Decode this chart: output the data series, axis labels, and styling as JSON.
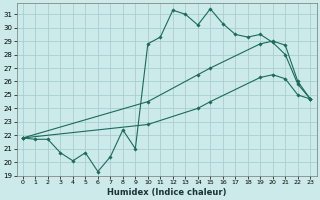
{
  "xlabel": "Humidex (Indice chaleur)",
  "background_color": "#cceaea",
  "grid_color": "#aacece",
  "line_color": "#1a6b5a",
  "xlim": [
    -0.5,
    23.5
  ],
  "ylim": [
    19,
    31.8
  ],
  "yticks": [
    19,
    20,
    21,
    22,
    23,
    24,
    25,
    26,
    27,
    28,
    29,
    30,
    31
  ],
  "xticks": [
    0,
    1,
    2,
    3,
    4,
    5,
    6,
    7,
    8,
    9,
    10,
    11,
    12,
    13,
    14,
    15,
    16,
    17,
    18,
    19,
    20,
    21,
    22,
    23
  ],
  "series1_x": [
    0,
    1,
    2,
    3,
    4,
    5,
    6,
    7,
    8,
    9,
    10,
    11,
    12,
    13,
    14,
    15,
    16,
    17,
    18,
    19,
    20,
    21,
    22,
    23
  ],
  "series1_y": [
    21.8,
    21.7,
    21.7,
    20.7,
    20.1,
    20.7,
    19.3,
    20.4,
    22.4,
    21.0,
    28.8,
    29.3,
    31.3,
    31.0,
    30.2,
    31.4,
    30.3,
    29.5,
    29.3,
    29.5,
    28.9,
    28.0,
    25.8,
    24.7
  ],
  "series2_x": [
    0,
    10,
    14,
    15,
    19,
    20,
    21,
    22,
    23
  ],
  "series2_y": [
    21.8,
    24.5,
    26.5,
    27.0,
    28.8,
    29.0,
    28.7,
    26.0,
    24.7
  ],
  "series3_x": [
    0,
    10,
    14,
    15,
    19,
    20,
    21,
    22,
    23
  ],
  "series3_y": [
    21.8,
    22.8,
    24.0,
    24.5,
    26.3,
    26.5,
    26.2,
    25.0,
    24.7
  ]
}
